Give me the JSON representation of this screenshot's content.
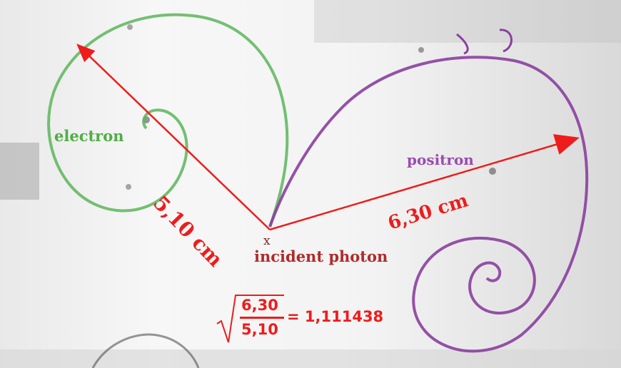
{
  "image": {
    "kind": "bubble-chamber pair-production photograph with annotations",
    "colors": {
      "electron_track": "#5cb55a",
      "positron_track": "#8a3f9e",
      "annotation": "#ee1c1c",
      "photon_label": "#b12a2a"
    }
  },
  "labels": {
    "electron": "electron",
    "positron": "positron",
    "electron_radius": "5,10 cm",
    "positron_radius": "6,30 cm",
    "vertex_mark": "x",
    "incident_photon": "incident photon"
  },
  "formula": {
    "numerator": "6,30",
    "denominator": "5,10",
    "result": "= 1,111438"
  }
}
